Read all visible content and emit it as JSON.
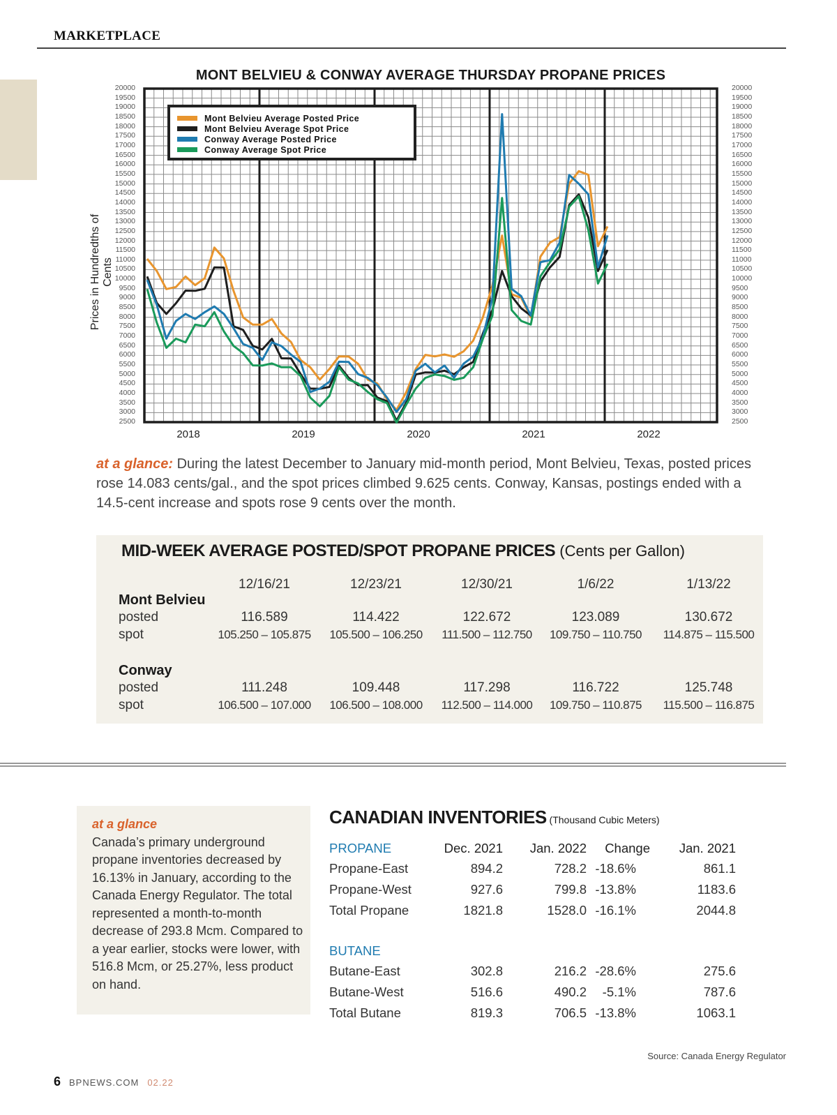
{
  "header": {
    "section": "MARKETPLACE"
  },
  "chart_data": {
    "type": "line",
    "title": "MONT BELVIEU & CONWAY AVERAGE THURSDAY PROPANE PRICES",
    "ylabel": "Prices in Hundredths of Cents",
    "xlabel": "",
    "ylim": [
      2500,
      20000
    ],
    "y_step": 500,
    "x_tick_labels": [
      "2018",
      "2019",
      "2020",
      "2021",
      "2022"
    ],
    "x": [
      "2018-01",
      "2018-02",
      "2018-03",
      "2018-04",
      "2018-05",
      "2018-06",
      "2018-07",
      "2018-08",
      "2018-09",
      "2018-10",
      "2018-11",
      "2018-12",
      "2019-01",
      "2019-02",
      "2019-03",
      "2019-04",
      "2019-05",
      "2019-06",
      "2019-07",
      "2019-08",
      "2019-09",
      "2019-10",
      "2019-11",
      "2019-12",
      "2020-01",
      "2020-02",
      "2020-03",
      "2020-04",
      "2020-05",
      "2020-06",
      "2020-07",
      "2020-08",
      "2020-09",
      "2020-10",
      "2020-11",
      "2020-12",
      "2021-01",
      "2021-02",
      "2021-03",
      "2021-04",
      "2021-05",
      "2021-06",
      "2021-07",
      "2021-08",
      "2021-09",
      "2021-10",
      "2021-11",
      "2021-12",
      "2022-01"
    ],
    "grid": true,
    "legend_placement": "top-left",
    "series": [
      {
        "name": "Mont Belvieu Average Posted Price",
        "color": "#e8952e",
        "values": [
          11250,
          10430,
          9300,
          9680,
          10050,
          9870,
          10050,
          11480,
          11180,
          9300,
          8180,
          7620,
          7440,
          8000,
          7060,
          6880,
          5760,
          5200,
          4820,
          5200,
          6130,
          5940,
          5380,
          4820,
          4440,
          3880,
          3140,
          3880,
          5380,
          5940,
          6130,
          6050,
          5750,
          6310,
          6690,
          8180,
          9680,
          12110,
          9300,
          8930,
          8180,
          11180,
          11740,
          12300,
          14920,
          15850,
          15480,
          11550,
          12860
        ]
      },
      {
        "name": "Mont Belvieu Average Spot Price",
        "color": "#1e1e1e",
        "values": [
          10050,
          8930,
          8180,
          8560,
          9490,
          9300,
          9680,
          10620,
          10430,
          7620,
          7250,
          6690,
          6310,
          6690,
          5940,
          5750,
          5200,
          4260,
          4070,
          4440,
          5380,
          5010,
          4440,
          4260,
          3880,
          3510,
          2760,
          3510,
          4820,
          5200,
          5010,
          5380,
          5010,
          5200,
          5750,
          7060,
          8560,
          10430,
          8930,
          8560,
          8000,
          10050,
          10620,
          10990,
          13980,
          14360,
          13420,
          10430,
          11360
        ]
      },
      {
        "name": "Conway Average Posted Price",
        "color": "#1f7bb0",
        "values": [
          10050,
          8560,
          7060,
          7810,
          8000,
          8000,
          8180,
          8750,
          8180,
          7250,
          6690,
          6310,
          5940,
          6690,
          6310,
          6130,
          5570,
          4260,
          4260,
          4440,
          5760,
          5570,
          5200,
          4820,
          4260,
          3880,
          2950,
          3880,
          5200,
          5380,
          5200,
          5380,
          5010,
          5570,
          5760,
          7060,
          8930,
          18840,
          9490,
          8930,
          8180,
          10800,
          11180,
          11920,
          15290,
          15100,
          14360,
          10800,
          12300
        ]
      },
      {
        "name": "Conway Average Spot Price",
        "color": "#1a9a5a",
        "values": [
          9300,
          7810,
          6310,
          7060,
          6690,
          7440,
          7620,
          8180,
          7440,
          6500,
          5940,
          5570,
          5380,
          5760,
          5380,
          5200,
          5010,
          3700,
          3510,
          3880,
          5200,
          4820,
          4440,
          4260,
          3700,
          3320,
          2570,
          3320,
          4440,
          4820,
          4820,
          5010,
          4630,
          5010,
          5380,
          6690,
          8180,
          14170,
          8560,
          7810,
          7440,
          10240,
          10800,
          11740,
          13800,
          14170,
          12670,
          9680,
          10990
        ]
      }
    ]
  },
  "glance": {
    "label": "at a glance:",
    "text": " During the latest December to January mid-month period, Mont Belvieu, Texas, posted prices rose 14.083 cents/gal., and the spot prices climbed 9.625 cents. Conway, Kansas, postings ended with a 14.5-cent increase and spots rose 9 cents over the month."
  },
  "price_table": {
    "title": "MID-WEEK AVERAGE POSTED/SPOT PROPANE PRICES",
    "unit": " (Cents per Gallon)",
    "dates": [
      "12/16/21",
      "12/23/21",
      "12/30/21",
      "1/6/22",
      "1/13/22"
    ],
    "groups": [
      {
        "name": "Mont Belvieu",
        "posted_label": "posted",
        "spot_label": "spot",
        "posted": [
          "116.589",
          "114.422",
          "122.672",
          "123.089",
          "130.672"
        ],
        "spot": [
          "105.250 – 105.875",
          "105.500 – 106.250",
          "111.500 – 112.750",
          "109.750 – 110.750",
          "114.875 – 115.500"
        ]
      },
      {
        "name": "Conway",
        "posted_label": "posted",
        "spot_label": "spot",
        "posted": [
          "111.248",
          "109.448",
          "117.298",
          "116.722",
          "125.748"
        ],
        "spot": [
          "106.500 – 107.000",
          "106.500 – 108.000",
          "112.500 – 114.000",
          "109.750 – 110.875",
          "115.500 – 116.875"
        ]
      }
    ]
  },
  "side_glance": {
    "label": "at a glance",
    "text": "Canada’s primary underground propane inventories decreased by 16.13% in January, according to the Canada Energy Regulator. The total represented a month-to-month decrease of 293.8 Mcm. Compared to a year earlier, stocks were lower, with 516.8 Mcm, or 25.27%, less product on hand."
  },
  "inventories": {
    "title": "CANADIAN INVENTORIES",
    "unit": " (Thousand Cubic Meters)",
    "columns": [
      "Dec. 2021",
      "Jan. 2022",
      "Change",
      "Jan. 2021"
    ],
    "sections": [
      {
        "name": "PROPANE",
        "rows": [
          {
            "label": "Propane-East",
            "values": [
              "894.2",
              "728.2",
              "-18.6%",
              "861.1"
            ]
          },
          {
            "label": "Propane-West",
            "values": [
              "927.6",
              "799.8",
              "-13.8%",
              "1183.6"
            ]
          },
          {
            "label": "Total Propane",
            "values": [
              "1821.8",
              "1528.0",
              "-16.1%",
              "2044.8"
            ]
          }
        ]
      },
      {
        "name": "BUTANE",
        "rows": [
          {
            "label": "Butane-East",
            "values": [
              "302.8",
              "216.2",
              "-28.6%",
              "275.6"
            ]
          },
          {
            "label": "Butane-West",
            "values": [
              "516.6",
              "490.2",
              "-5.1%",
              "787.6"
            ]
          },
          {
            "label": "Total Butane",
            "values": [
              "819.3",
              "706.5",
              "-13.8%",
              "1063.1"
            ]
          }
        ]
      }
    ],
    "source": "Source: Canada Energy Regulator"
  },
  "footer": {
    "page": "6",
    "site": "BPNEWS.COM",
    "issue": "02.22"
  }
}
